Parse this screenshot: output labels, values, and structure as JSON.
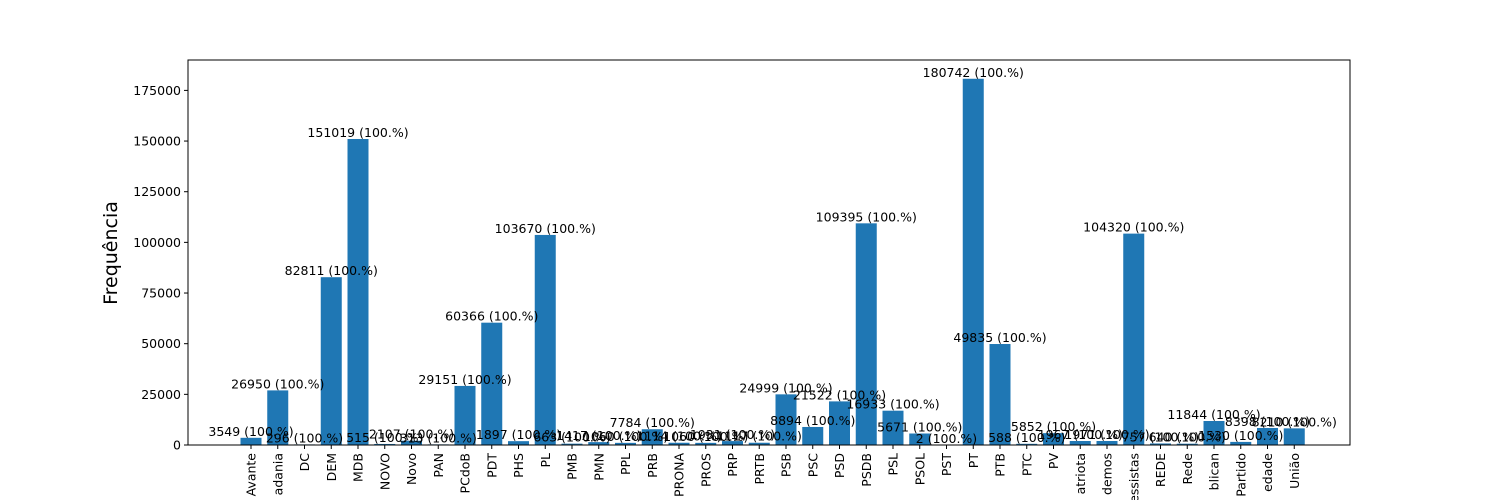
{
  "chart_data": {
    "type": "bar",
    "title": "",
    "xlabel": "",
    "ylabel": "Frequência",
    "ylim": [
      0,
      190000
    ],
    "yticks": [
      0,
      25000,
      50000,
      75000,
      100000,
      125000,
      150000,
      175000
    ],
    "ytick_labels": [
      "0",
      "25000",
      "50000",
      "75000",
      "100000",
      "125000",
      "150000",
      "175000"
    ],
    "bar_color": "#1f77b4",
    "grid": false,
    "categories": [
      "Avante",
      "Cidadania",
      "DC",
      "DEM",
      "MDB",
      "NOVO",
      "Novo",
      "PAN",
      "PCdoB",
      "PDT",
      "PHS",
      "PL",
      "PMB",
      "PMN",
      "PPL",
      "PRB",
      "PRONA",
      "PROS",
      "PRP",
      "PRTB",
      "PSB",
      "PSC",
      "PSD",
      "PSDB",
      "PSL",
      "PSOL",
      "PST",
      "PT",
      "PTB",
      "PTC",
      "PV",
      "Patriota",
      "Podemos",
      "Progressistas",
      "REDE",
      "Rede",
      "Republicanos",
      "Sem Partido",
      "Solidariedade",
      "União"
    ],
    "tick_labels_visible": [
      "Avante",
      "adania",
      "DC",
      "DEM",
      "MDB",
      "NOVO",
      "Novo",
      "PAN",
      "PCdoB",
      "PDT",
      "PHS",
      "PL",
      "PMB",
      "PMN",
      "PPL",
      "PRB",
      "PRONA",
      "PROS",
      "PRP",
      "PRTB",
      "PSB",
      "PSC",
      "PSD",
      "PSDB",
      "PSL",
      "PSOL",
      "PST",
      "PT",
      "PTB",
      "PTC",
      "PV",
      "atriota",
      "demos",
      "essistas",
      "REDE",
      "Rede",
      "blican",
      "Partido",
      "edade",
      "União"
    ],
    "values": [
      3549,
      26950,
      296,
      82811,
      151019,
      515,
      2107,
      313,
      29151,
      60366,
      1897,
      103670,
      663,
      1417,
      1060,
      7784,
      1114,
      1060,
      1931,
      1117,
      24999,
      8894,
      21522,
      109395,
      16933,
      5671,
      2,
      180742,
      49835,
      588,
      5852,
      1967,
      1971,
      104320,
      757,
      640,
      11844,
      1530,
      8398,
      8210
    ],
    "data_labels": [
      "3549 (100.%)",
      "26950 (100.%)",
      "296 (100.%)",
      "82811 (100.%)",
      "151019 (100.%)",
      "515 (100.%)",
      "2107 (100.%)",
      "313 (100.%)",
      "29151 (100.%)",
      "60366 (100.%)",
      "1897 (100.%)",
      "103670 (100.%)",
      "663 (100.%)",
      "1417 (100.%)",
      "1060 (100.%)",
      "7784 (100.%)",
      "1114 (100.%)",
      "1060 (100.%)",
      "1931 (100.%)",
      "1117 (100.%)",
      "24999 (100.%)",
      "8894 (100.%)",
      "21522 (100.%)",
      "109395 (100.%)",
      "16933 (100.%)",
      "5671 (100.%)",
      "2 (100.%)",
      "180742 (100.%)",
      "49835 (100.%)",
      "588 (100.%)",
      "5852 (100.%)",
      "1967 (100.%)",
      "1971 (100.%)",
      "104320 (100.%)",
      "757 (100.%)",
      "640 (100.%)",
      "11844 (100.%)",
      "1530 (100.%)",
      "8398 (100.%)",
      "8210 (100.%)"
    ]
  }
}
